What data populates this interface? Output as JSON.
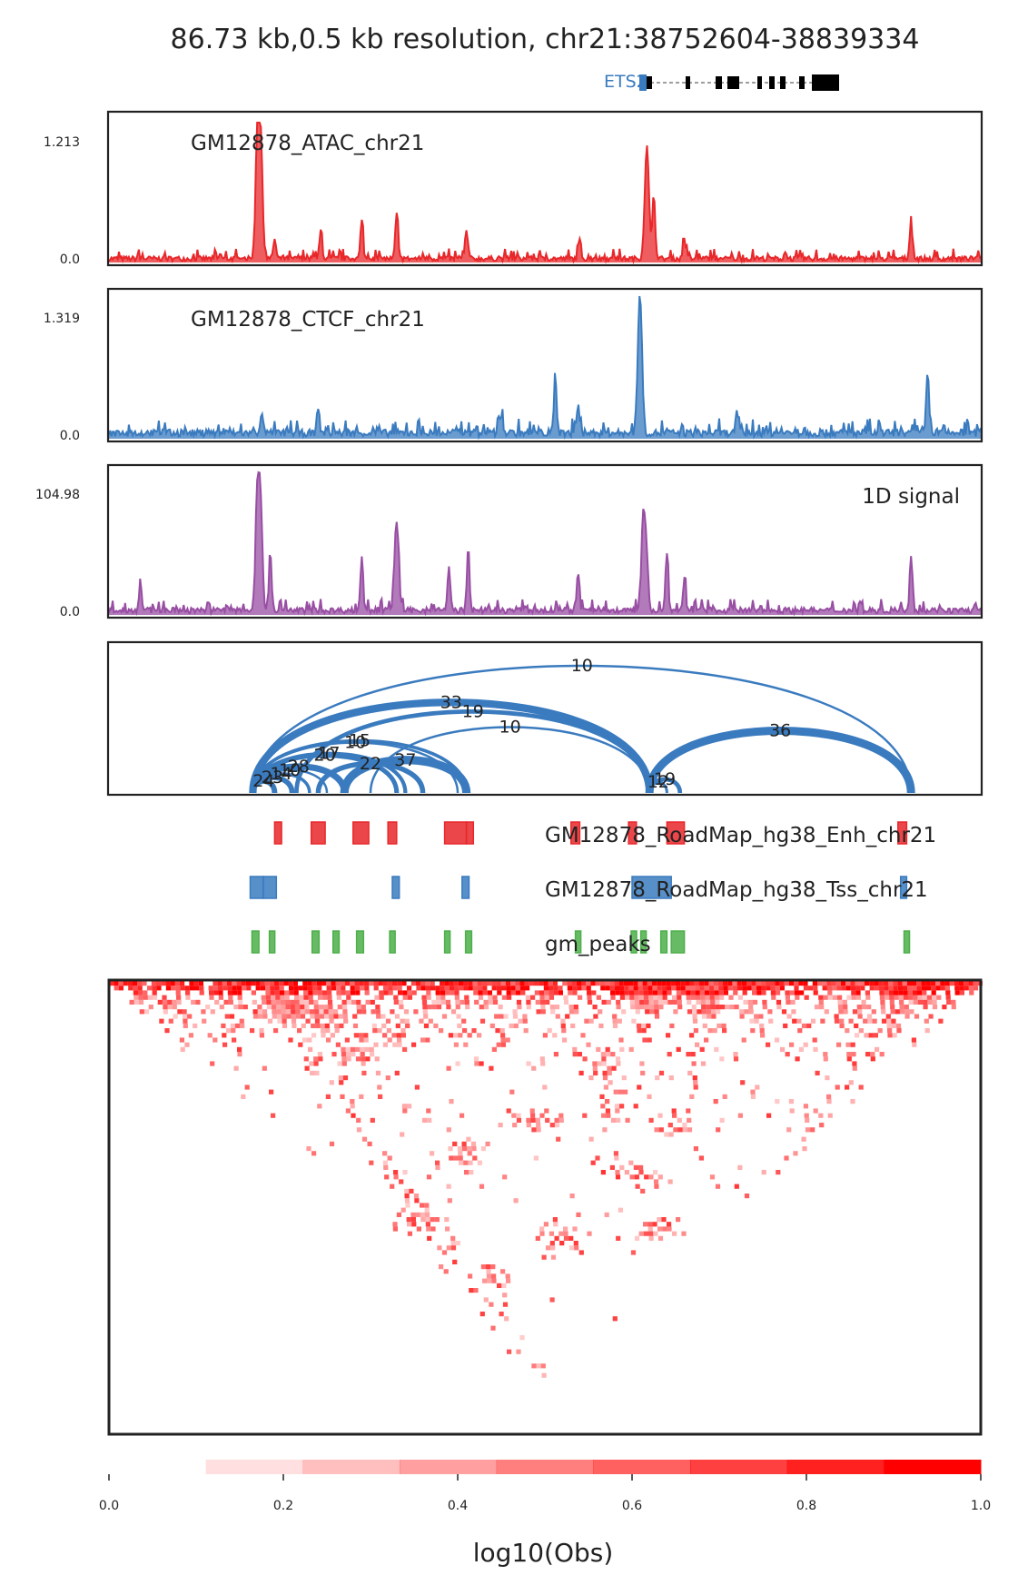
{
  "title": "86.73 kb,0.5 kb resolution, chr21:38752604-38839334",
  "gene": {
    "name": "ETS2",
    "color": "#3a7bbf"
  },
  "chart_data": [
    {
      "type": "area",
      "name": "atac-track",
      "label": "GM12878_ATAC_chr21",
      "color": "#e8272a",
      "ymax_label": "1.213",
      "ymin_label": "0.0",
      "ylim": [
        0,
        1.213
      ],
      "x_range": [
        0,
        1
      ],
      "peaks": [
        [
          0.171,
          1.0
        ],
        [
          0.174,
          0.55
        ],
        [
          0.19,
          0.14
        ],
        [
          0.243,
          0.2
        ],
        [
          0.29,
          0.27
        ],
        [
          0.33,
          0.32
        ],
        [
          0.41,
          0.2
        ],
        [
          0.54,
          0.14
        ],
        [
          0.617,
          0.8
        ],
        [
          0.625,
          0.45
        ],
        [
          0.66,
          0.15
        ],
        [
          0.92,
          0.27
        ]
      ]
    },
    {
      "type": "area",
      "name": "ctcf-track",
      "label": "GM12878_CTCF_chr21",
      "color": "#3a7bbf",
      "ymax_label": "1.319",
      "ymin_label": "0.0",
      "ylim": [
        0,
        1.319
      ],
      "x_range": [
        0,
        1
      ],
      "peaks": [
        [
          0.609,
          1.0
        ],
        [
          0.512,
          0.37
        ],
        [
          0.538,
          0.2
        ],
        [
          0.939,
          0.44
        ],
        [
          0.175,
          0.15
        ],
        [
          0.24,
          0.17
        ],
        [
          0.45,
          0.13
        ],
        [
          0.72,
          0.14
        ]
      ]
    },
    {
      "type": "area",
      "name": "signal-track",
      "label": "1D signal",
      "color": "#984ea3",
      "ymax_label": "104.98",
      "ymin_label": "0.0",
      "ylim": [
        0,
        104.98
      ],
      "x_range": [
        0,
        1
      ],
      "peaks": [
        [
          0.171,
          1.0
        ],
        [
          0.175,
          0.42
        ],
        [
          0.185,
          0.35
        ],
        [
          0.036,
          0.18
        ],
        [
          0.29,
          0.38
        ],
        [
          0.33,
          0.63
        ],
        [
          0.39,
          0.3
        ],
        [
          0.412,
          0.38
        ],
        [
          0.538,
          0.25
        ],
        [
          0.612,
          0.38
        ],
        [
          0.615,
          0.6
        ],
        [
          0.64,
          0.42
        ],
        [
          0.66,
          0.23
        ],
        [
          0.92,
          0.4
        ]
      ]
    },
    {
      "type": "arc",
      "name": "loops",
      "color": "#3a7bbf",
      "x_range": [
        0,
        1
      ],
      "loops": [
        {
          "start": 0.165,
          "end": 0.92,
          "label": "10"
        },
        {
          "start": 0.165,
          "end": 0.62,
          "label": "33"
        },
        {
          "start": 0.215,
          "end": 0.62,
          "label": "19"
        },
        {
          "start": 0.3,
          "end": 0.62,
          "label": "10"
        },
        {
          "start": 0.62,
          "end": 0.92,
          "label": "36"
        },
        {
          "start": 0.165,
          "end": 0.41,
          "label": "15"
        },
        {
          "start": 0.165,
          "end": 0.4,
          "label": "10"
        },
        {
          "start": 0.165,
          "end": 0.34,
          "label": "17"
        },
        {
          "start": 0.165,
          "end": 0.33,
          "label": "20"
        },
        {
          "start": 0.165,
          "end": 0.27,
          "label": "28"
        },
        {
          "start": 0.165,
          "end": 0.25,
          "label": "10"
        },
        {
          "start": 0.165,
          "end": 0.23,
          "label": "14"
        },
        {
          "start": 0.165,
          "end": 0.21,
          "label": "23"
        },
        {
          "start": 0.165,
          "end": 0.19,
          "label": "24"
        },
        {
          "start": 0.24,
          "end": 0.36,
          "label": "22"
        },
        {
          "start": 0.27,
          "end": 0.41,
          "label": "37"
        },
        {
          "start": 0.62,
          "end": 0.64,
          "label": "12"
        },
        {
          "start": 0.62,
          "end": 0.655,
          "label": "19"
        }
      ]
    },
    {
      "type": "bed",
      "name": "enhancer-track",
      "label": "GM12878_RoadMap_hg38_Enh_chr21",
      "color": "#e8272a",
      "intervals": [
        [
          0.19,
          0.198
        ],
        [
          0.232,
          0.248
        ],
        [
          0.28,
          0.298
        ],
        [
          0.32,
          0.33
        ],
        [
          0.385,
          0.41
        ],
        [
          0.41,
          0.418
        ],
        [
          0.53,
          0.54
        ],
        [
          0.596,
          0.605
        ],
        [
          0.64,
          0.66
        ],
        [
          0.905,
          0.915
        ]
      ]
    },
    {
      "type": "bed",
      "name": "tss-track",
      "label": "GM12878_RoadMap_hg38_Tss_chr21",
      "color": "#3a7bbf",
      "intervals": [
        [
          0.162,
          0.177
        ],
        [
          0.177,
          0.192
        ],
        [
          0.325,
          0.333
        ],
        [
          0.405,
          0.413
        ],
        [
          0.6,
          0.645
        ],
        [
          0.908,
          0.915
        ]
      ]
    },
    {
      "type": "bed",
      "name": "peaks-track",
      "label": "gm_peaks",
      "color": "#4daf4a",
      "intervals": [
        [
          0.164,
          0.172
        ],
        [
          0.184,
          0.19
        ],
        [
          0.233,
          0.241
        ],
        [
          0.257,
          0.264
        ],
        [
          0.284,
          0.292
        ],
        [
          0.322,
          0.328
        ],
        [
          0.385,
          0.39
        ],
        [
          0.409,
          0.416
        ],
        [
          0.535,
          0.54
        ],
        [
          0.599,
          0.605
        ],
        [
          0.61,
          0.616
        ],
        [
          0.633,
          0.64
        ],
        [
          0.645,
          0.66
        ],
        [
          0.912,
          0.918
        ]
      ]
    },
    {
      "type": "heatmap",
      "name": "contact-map",
      "cmap_color": "#ff0000",
      "hotspots": [
        [
          0.2,
          0.05
        ],
        [
          0.24,
          0.08
        ],
        [
          0.28,
          0.16
        ],
        [
          0.32,
          0.12
        ],
        [
          0.62,
          0.04
        ],
        [
          0.68,
          0.05
        ],
        [
          0.92,
          0.03
        ],
        [
          0.4,
          0.4
        ],
        [
          0.48,
          0.32
        ],
        [
          0.56,
          0.2
        ],
        [
          0.44,
          0.7
        ],
        [
          0.52,
          0.6
        ],
        [
          0.35,
          0.55
        ],
        [
          0.62,
          0.58
        ],
        [
          0.58,
          0.28
        ],
        [
          0.6,
          0.45
        ],
        [
          0.64,
          0.32
        ]
      ],
      "colorbar": {
        "label": "log10(Obs)",
        "ticks": [
          "0.0",
          "0.2",
          "0.4",
          "0.6",
          "0.8",
          "1.0"
        ],
        "range": [
          0,
          1
        ],
        "levels": 9
      }
    }
  ]
}
